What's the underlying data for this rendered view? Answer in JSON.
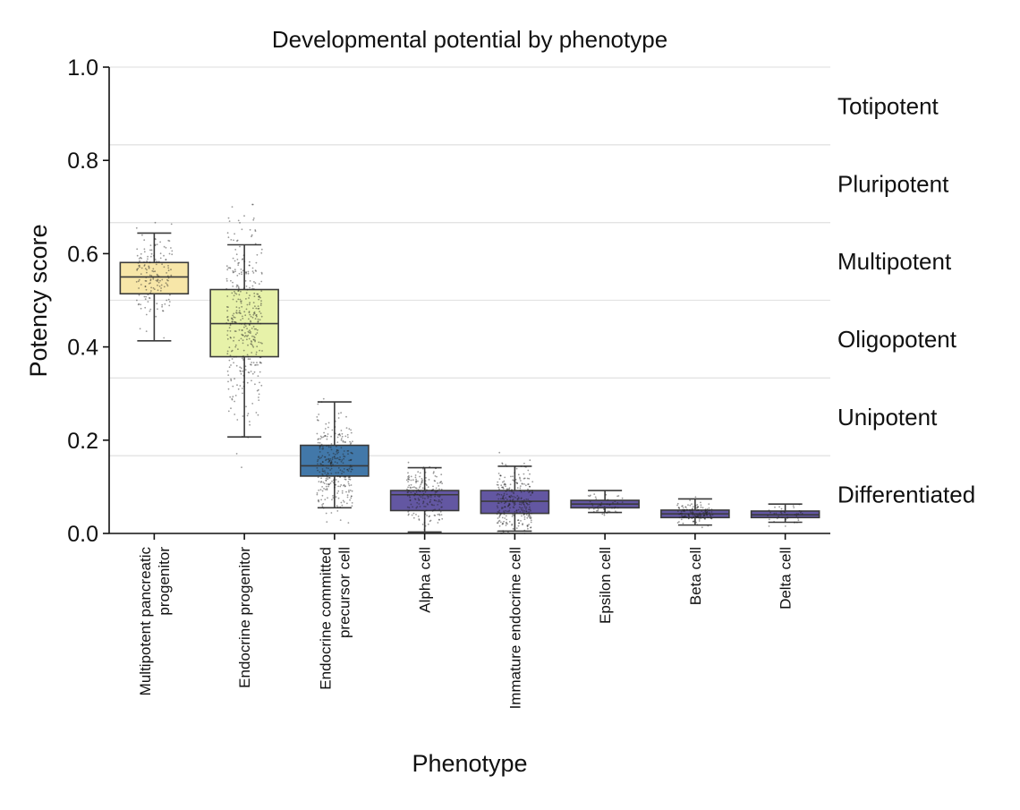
{
  "chart_data": {
    "type": "box",
    "title": "Developmental potential by phenotype",
    "xlabel": "Phenotype",
    "ylabel": "Potency score",
    "ylim": [
      0.0,
      1.0
    ],
    "yticks": [
      "0.0",
      "0.2",
      "0.4",
      "0.6",
      "0.8",
      "1.0"
    ],
    "grid": "horizontal bands at sixths",
    "band_labels": [
      "Differentiated",
      "Unipotent",
      "Oligopotent",
      "Multipotent",
      "Pluripotent",
      "Totipotent"
    ],
    "categories": [
      "Multipotent pancreatic progenitor",
      "Endocrine progenitor",
      "Endocrine committed precursor cell",
      "Alpha cell",
      "Immature endocrine cell",
      "Epsilon cell",
      "Beta cell",
      "Delta cell"
    ],
    "category_lines": [
      [
        "Multipotent pancreatic",
        "progenitor"
      ],
      [
        "Endocrine progenitor"
      ],
      [
        "Endocrine committed",
        "precursor cell"
      ],
      [
        "Alpha cell"
      ],
      [
        "Immature endocrine cell"
      ],
      [
        "Epsilon cell"
      ],
      [
        "Beta cell"
      ],
      [
        "Delta cell"
      ]
    ],
    "boxes": [
      {
        "whisker_low": 0.413,
        "q1": 0.514,
        "median": 0.55,
        "q3": 0.581,
        "whisker_high": 0.644,
        "color": "#f7e6a8"
      },
      {
        "whisker_low": 0.207,
        "q1": 0.379,
        "median": 0.45,
        "q3": 0.523,
        "whisker_high": 0.619,
        "color": "#e7f2a9"
      },
      {
        "whisker_low": 0.055,
        "q1": 0.123,
        "median": 0.145,
        "q3": 0.189,
        "whisker_high": 0.282,
        "color": "#4278a9"
      },
      {
        "whisker_low": 0.003,
        "q1": 0.049,
        "median": 0.083,
        "q3": 0.092,
        "whisker_high": 0.141,
        "color": "#6357a2"
      },
      {
        "whisker_low": 0.005,
        "q1": 0.043,
        "median": 0.069,
        "q3": 0.092,
        "whisker_high": 0.144,
        "color": "#6357a2"
      },
      {
        "whisker_low": 0.045,
        "q1": 0.055,
        "median": 0.063,
        "q3": 0.071,
        "whisker_high": 0.092,
        "color": "#6357a2"
      },
      {
        "whisker_low": 0.018,
        "q1": 0.034,
        "median": 0.042,
        "q3": 0.05,
        "whisker_high": 0.074,
        "color": "#6357a2"
      },
      {
        "whisker_low": 0.024,
        "q1": 0.034,
        "median": 0.04,
        "q3": 0.048,
        "whisker_high": 0.063,
        "color": "#6357a2"
      }
    ]
  }
}
